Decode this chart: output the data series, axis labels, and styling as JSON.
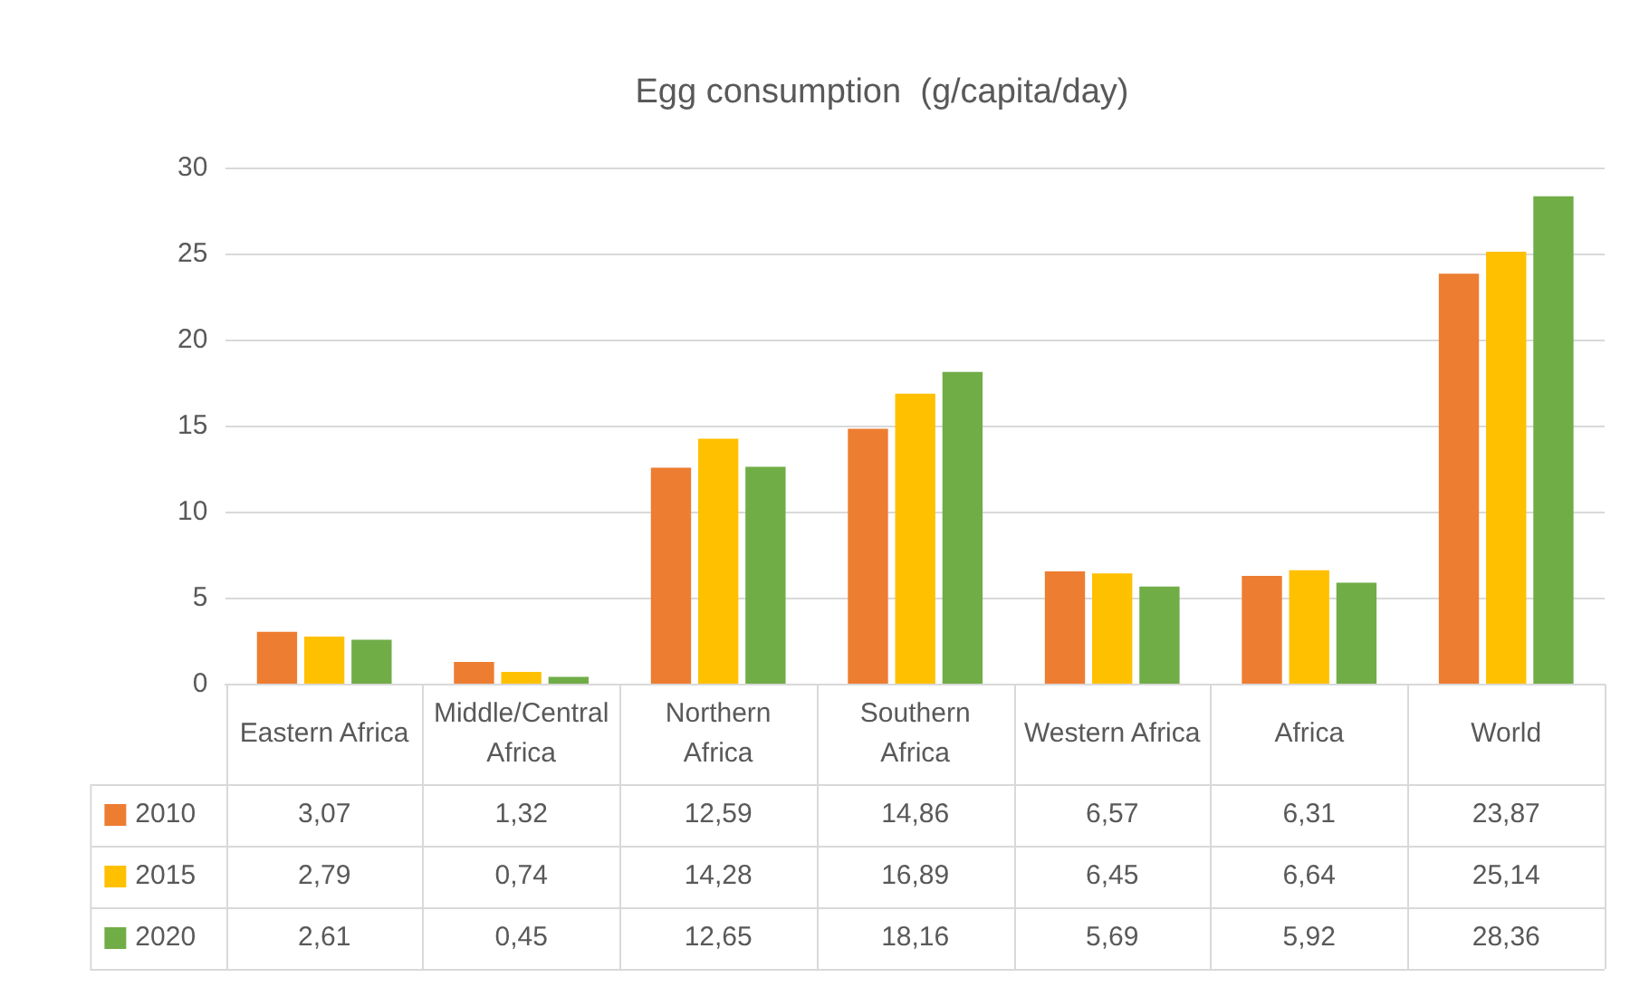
{
  "chart_data": {
    "type": "bar",
    "title": "Egg consumption  (g/capita/day)",
    "categories": [
      "Eastern Africa",
      "Middle/Central Africa",
      "Northern Africa",
      "Southern Africa",
      "Western Africa",
      "Africa",
      "World"
    ],
    "series": [
      {
        "name": "2010",
        "color": "#ed7d31",
        "values": [
          3.07,
          1.32,
          12.59,
          14.86,
          6.57,
          6.31,
          23.87
        ],
        "value_labels": [
          "3,07",
          "1,32",
          "12,59",
          "14,86",
          "6,57",
          "6,31",
          "23,87"
        ]
      },
      {
        "name": "2015",
        "color": "#ffc000",
        "values": [
          2.79,
          0.74,
          14.28,
          16.89,
          6.45,
          6.64,
          25.14
        ],
        "value_labels": [
          "2,79",
          "0,74",
          "14,28",
          "16,89",
          "6,45",
          "6,64",
          "25,14"
        ]
      },
      {
        "name": "2020",
        "color": "#70ad47",
        "values": [
          2.61,
          0.45,
          12.65,
          18.16,
          5.69,
          5.92,
          28.36
        ],
        "value_labels": [
          "2,61",
          "0,45",
          "12,65",
          "18,16",
          "5,69",
          "5,92",
          "28,36"
        ]
      }
    ],
    "ylim": [
      0,
      30
    ],
    "yticks": [
      0,
      5,
      10,
      15,
      20,
      25,
      30
    ],
    "grid": "y",
    "legend": "bottom"
  }
}
